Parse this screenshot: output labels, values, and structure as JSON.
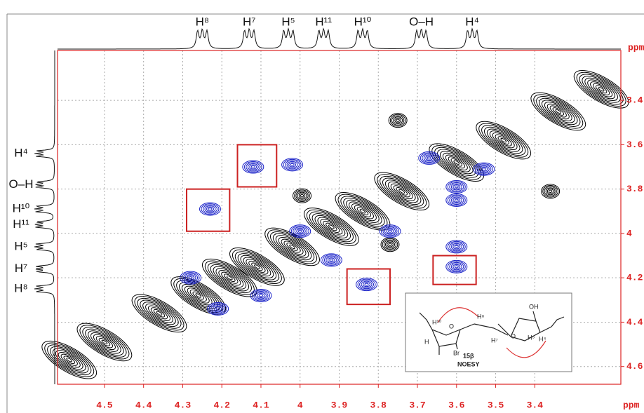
{
  "chart_data": {
    "type": "noesy",
    "x_label": "ppm",
    "y_label": "ppm",
    "xlim": [
      4.62,
      3.18
    ],
    "ylim": [
      3.175,
      4.68
    ],
    "xticks": [
      4.5,
      4.4,
      4.3,
      4.2,
      4.1,
      4.0,
      3.9,
      3.8,
      3.7,
      3.6,
      3.5,
      3.4
    ],
    "yticks": [
      3.4,
      3.6,
      3.8,
      4.0,
      4.2,
      4.4,
      4.6
    ],
    "grid": true,
    "axis_color": "#dd2222",
    "diagonal_color": "#000000",
    "cross_color": "#1a22c8",
    "box_color": "#cc2222",
    "top_labels": [
      {
        "label": "H⁸",
        "shift": 4.25
      },
      {
        "label": "H⁷",
        "shift": 4.13
      },
      {
        "label": "H⁵",
        "shift": 4.03
      },
      {
        "label": "H¹¹",
        "shift": 3.94
      },
      {
        "label": "H¹⁰",
        "shift": 3.84
      },
      {
        "label": "O–H",
        "shift": 3.69
      },
      {
        "label": "H⁴",
        "shift": 3.56
      }
    ],
    "left_labels": [
      {
        "label": "H⁴",
        "shift": 3.64
      },
      {
        "label": "O–H",
        "shift": 3.78
      },
      {
        "label": "H¹⁰",
        "shift": 3.89
      },
      {
        "label": "H¹¹",
        "shift": 3.96
      },
      {
        "label": "H⁵",
        "shift": 4.06
      },
      {
        "label": "H⁷",
        "shift": 4.16
      },
      {
        "label": "H⁸",
        "shift": 4.25
      }
    ],
    "diagonal_peaks": [
      {
        "x": 4.59,
        "y": 4.57
      },
      {
        "x": 4.5,
        "y": 4.49
      },
      {
        "x": 4.36,
        "y": 4.36
      },
      {
        "x": 4.26,
        "y": 4.28
      },
      {
        "x": 4.18,
        "y": 4.2
      },
      {
        "x": 4.11,
        "y": 4.15
      },
      {
        "x": 4.02,
        "y": 4.06
      },
      {
        "x": 3.92,
        "y": 3.97
      },
      {
        "x": 3.84,
        "y": 3.9
      },
      {
        "x": 3.74,
        "y": 3.81
      },
      {
        "x": 3.6,
        "y": 3.68
      },
      {
        "x": 3.48,
        "y": 3.58
      },
      {
        "x": 3.34,
        "y": 3.45
      },
      {
        "x": 3.23,
        "y": 3.35
      }
    ],
    "other_peaks": [
      {
        "x": 3.75,
        "y": 3.49
      },
      {
        "x": 3.36,
        "y": 3.81
      },
      {
        "x": 3.995,
        "y": 3.83
      },
      {
        "x": 3.77,
        "y": 4.05
      }
    ],
    "cross_peaks": [
      {
        "x": 4.12,
        "y": 3.7
      },
      {
        "x": 4.02,
        "y": 3.69
      },
      {
        "x": 4.23,
        "y": 3.89
      },
      {
        "x": 3.83,
        "y": 4.23
      },
      {
        "x": 3.6,
        "y": 4.06
      },
      {
        "x": 3.6,
        "y": 4.15
      },
      {
        "x": 4.28,
        "y": 4.2
      },
      {
        "x": 4.1,
        "y": 4.28
      },
      {
        "x": 4.21,
        "y": 4.34
      },
      {
        "x": 3.77,
        "y": 3.99
      },
      {
        "x": 3.67,
        "y": 3.66
      },
      {
        "x": 3.53,
        "y": 3.71
      },
      {
        "x": 3.6,
        "y": 3.79
      },
      {
        "x": 3.6,
        "y": 3.85
      },
      {
        "x": 4.0,
        "y": 3.99
      },
      {
        "x": 3.92,
        "y": 4.12
      }
    ],
    "highlight_boxes": [
      {
        "x": [
          4.16,
          4.06
        ],
        "y": [
          3.6,
          3.79
        ]
      },
      {
        "x": [
          4.29,
          4.18
        ],
        "y": [
          3.8,
          3.99
        ]
      },
      {
        "x": [
          3.88,
          3.77
        ],
        "y": [
          4.16,
          4.32
        ]
      },
      {
        "x": [
          3.66,
          3.55
        ],
        "y": [
          4.1,
          4.23
        ]
      }
    ]
  },
  "inset": {
    "compound": "15β",
    "experiment": "NOESY",
    "atoms": [
      "H¹⁰",
      "O",
      "H⁸",
      "H",
      "Br",
      "H⁷",
      "O",
      "H⁵",
      "H⁴",
      "OH"
    ]
  }
}
